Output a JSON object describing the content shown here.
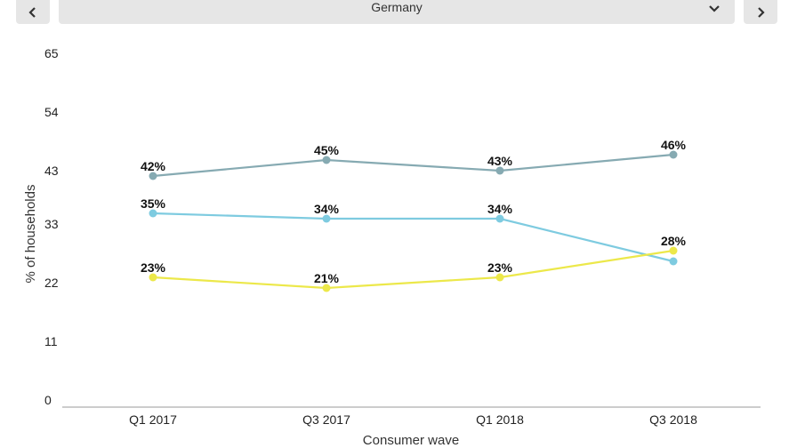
{
  "header": {
    "country": "Germany",
    "prev_icon": "chevron-left-icon",
    "next_icon": "chevron-right-icon",
    "dropdown_icon": "chevron-down-icon"
  },
  "chart_data": {
    "type": "line",
    "title": "",
    "xlabel": "Consumer wave",
    "ylabel": "% of households",
    "categories": [
      "Q1 2017",
      "Q3 2017",
      "Q1 2018",
      "Q3 2018"
    ],
    "y_ticks": [
      0,
      11,
      22,
      33,
      43,
      54,
      65
    ],
    "ylim": [
      0,
      65
    ],
    "grid": false,
    "series": [
      {
        "name": "series-1",
        "color": "#86aab2",
        "values": [
          42,
          45,
          43,
          46
        ],
        "labels": [
          "42%",
          "45%",
          "43%",
          "46%"
        ]
      },
      {
        "name": "series-2",
        "color": "#7ecbe0",
        "values": [
          35,
          34,
          34,
          26
        ],
        "labels": [
          "35%",
          "34%",
          "34%",
          ""
        ]
      },
      {
        "name": "series-3",
        "color": "#ece84a",
        "values": [
          23,
          21,
          23,
          28
        ],
        "labels": [
          "23%",
          "21%",
          "23%",
          "28%"
        ]
      }
    ]
  }
}
